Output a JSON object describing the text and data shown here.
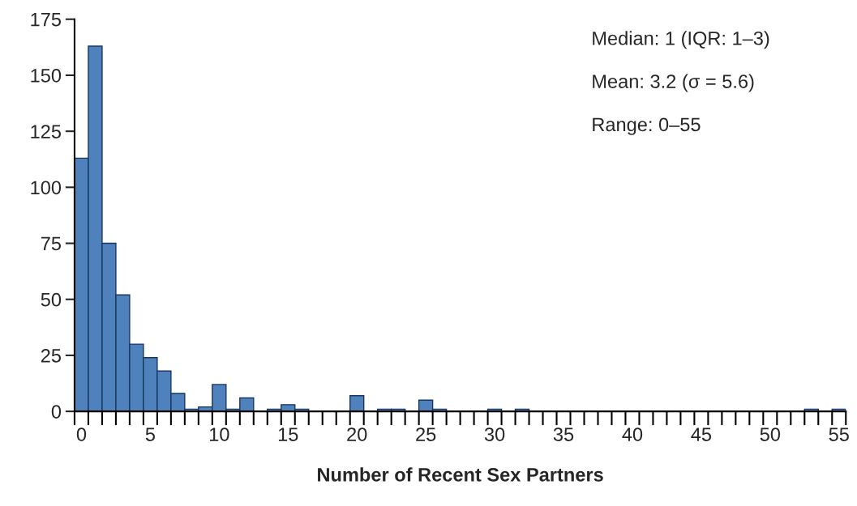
{
  "chart_data": {
    "type": "histogram",
    "xlabel": "Number of Recent Sex Partners",
    "bins": [
      -0.5,
      0.5,
      1.5,
      2.5,
      3.5,
      4.5,
      5.5,
      6.5,
      7.5,
      8.5,
      9.5,
      10.5,
      11.5,
      12.5,
      13.5,
      14.5,
      15.5,
      16.5,
      17.5,
      18.5,
      19.5,
      20.5,
      21.5,
      22.5,
      23.5,
      24.5,
      25.5,
      26.5,
      27.5,
      28.5,
      29.5,
      30.5,
      31.5,
      32.5,
      33.5,
      34.5,
      35.5,
      36.5,
      37.5,
      38.5,
      39.5,
      40.5,
      41.5,
      42.5,
      43.5,
      44.5,
      45.5,
      46.5,
      47.5,
      48.5,
      49.5,
      50.5,
      51.5,
      52.5,
      53.5,
      54.5,
      55.5
    ],
    "values": [
      113,
      163,
      75,
      52,
      30,
      24,
      18,
      8,
      1,
      2,
      12,
      1,
      6,
      0,
      1,
      3,
      1,
      0,
      0,
      0,
      7,
      0,
      1,
      1,
      0,
      5,
      1,
      0,
      0,
      0,
      1,
      0,
      1,
      0,
      0,
      0,
      0,
      0,
      0,
      0,
      0,
      0,
      0,
      0,
      0,
      0,
      0,
      0,
      0,
      0,
      0,
      0,
      0,
      1,
      0,
      1
    ],
    "color": "#4f81bd",
    "xlim": [
      -0.5,
      55.5
    ],
    "ylim": [
      0,
      175
    ],
    "yticks": [
      0,
      25,
      50,
      75,
      100,
      125,
      150,
      175
    ],
    "xticks": [
      0,
      5,
      10,
      15,
      20,
      25,
      30,
      35,
      40,
      45,
      50,
      55
    ],
    "grid": false,
    "annotations": [
      "Median: 1 (IQR: 1–3)",
      "Mean: 3.2 (σ = 5.6)",
      "Range: 0–55"
    ]
  }
}
